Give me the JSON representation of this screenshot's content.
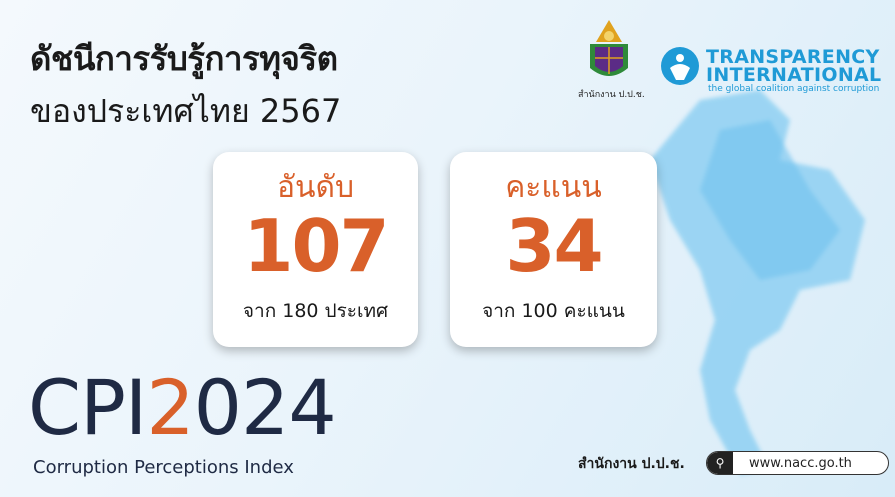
{
  "title": {
    "line1": "ดัชนีการรับรู้การทุจริต",
    "line2": "ของประเทศไทย 2567"
  },
  "logos": {
    "nacc_caption": "สำนักงาน ป.ป.ช.",
    "ti_name_1": "TRANSPARENCY",
    "ti_name_2": "INTERNATIONAL",
    "ti_tagline": "the global coalition against corruption"
  },
  "cards": [
    {
      "label": "อันดับ",
      "value": "107",
      "sub": "จาก 180 ประเทศ"
    },
    {
      "label": "คะแนน",
      "value": "34",
      "sub": "จาก 100 คะแนน"
    }
  ],
  "cpi": {
    "prefix": "CPI",
    "year_accent": "2",
    "year_rest": "024",
    "subtitle": "Corruption Perceptions Index"
  },
  "footer": {
    "org": "สำนักงาน ป.ป.ช.",
    "url": "www.nacc.go.th",
    "search_icon": "search-icon"
  },
  "colors": {
    "accent": "#d9602a",
    "navy": "#1f2a44",
    "ti_blue": "#1f9ad6"
  }
}
